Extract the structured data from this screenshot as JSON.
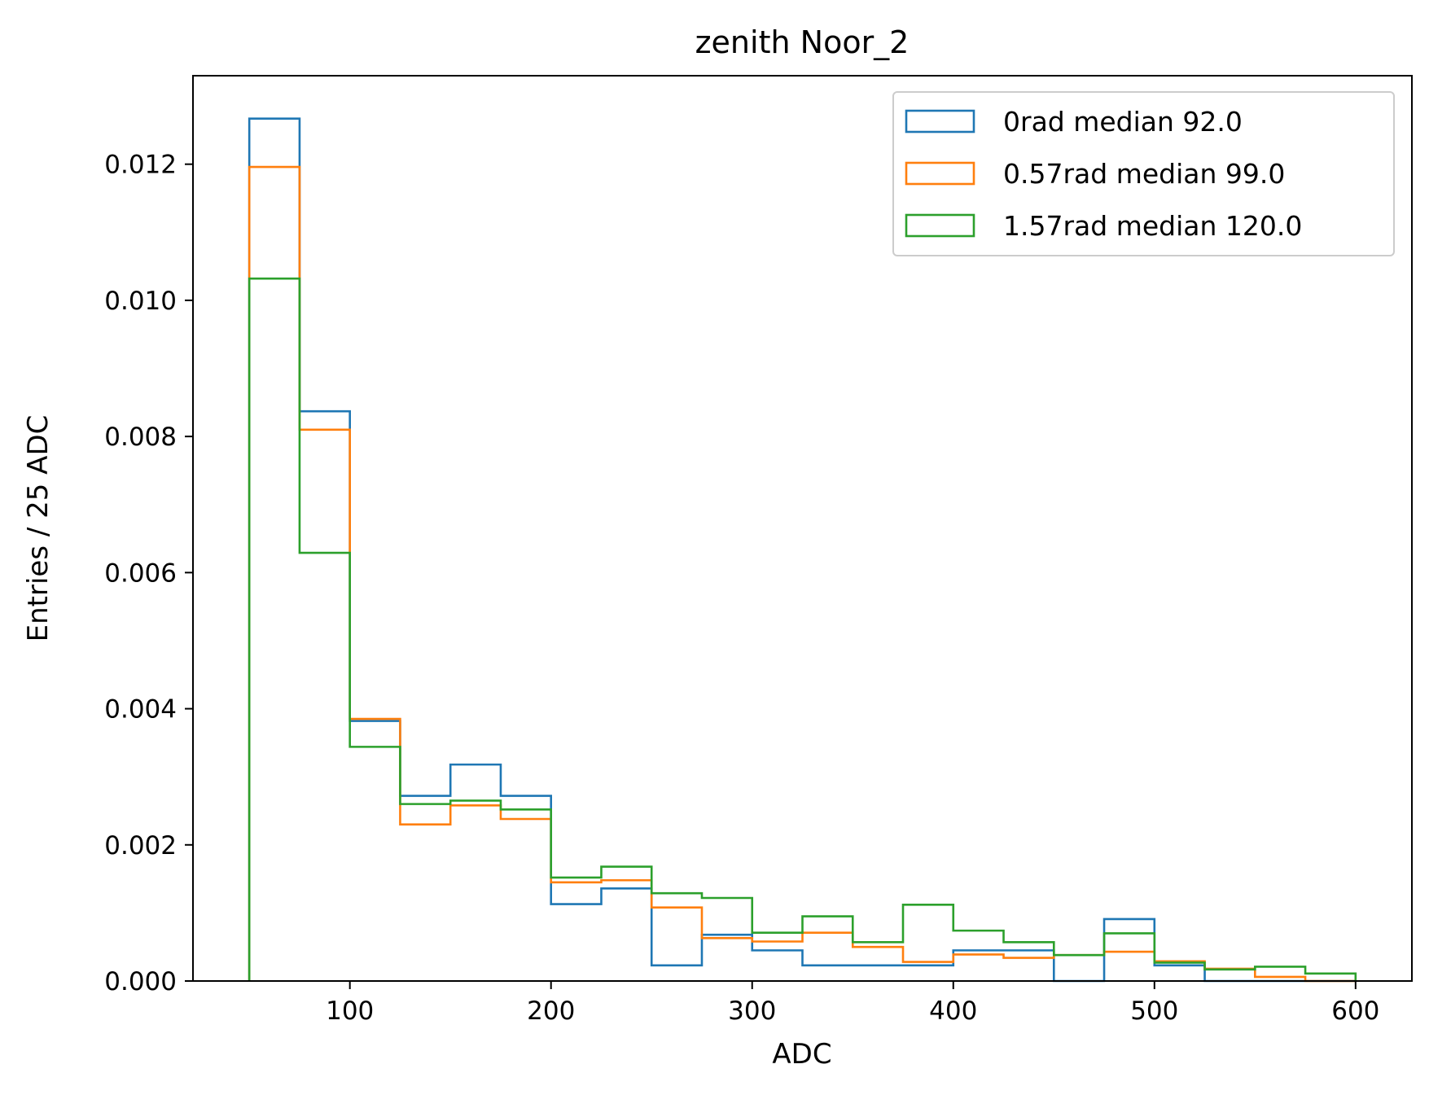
{
  "chart_data": {
    "type": "histogram (step)",
    "title": "zenith Noor_2",
    "xlabel": "ADC",
    "ylabel": "Entries / 25 ADC",
    "xlim": [
      22,
      628
    ],
    "ylim": [
      0,
      0.0133
    ],
    "xticks": [
      100,
      200,
      300,
      400,
      500,
      600
    ],
    "xtick_labels": [
      "100",
      "200",
      "300",
      "400",
      "500",
      "600"
    ],
    "yticks": [
      0.0,
      0.002,
      0.004,
      0.006,
      0.008,
      0.01,
      0.012
    ],
    "ytick_labels": [
      "0.000",
      "0.002",
      "0.004",
      "0.006",
      "0.008",
      "0.010",
      "0.012"
    ],
    "grid": false,
    "legend_position": "upper right",
    "bin_edges": [
      50,
      75,
      100,
      125,
      150,
      175,
      200,
      225,
      250,
      275,
      300,
      325,
      350,
      375,
      400,
      425,
      450,
      475,
      500,
      525,
      550,
      575,
      600
    ],
    "series": [
      {
        "name": "0rad median 92.0",
        "color": "#1f77b4",
        "values": [
          0.01267,
          0.00837,
          0.00382,
          0.00272,
          0.00318,
          0.00272,
          0.00113,
          0.00136,
          0.00023,
          0.00068,
          0.00045,
          0.00023,
          0.00023,
          0.00023,
          0.00045,
          0.00045,
          0.0,
          0.00091,
          0.00023,
          0.0,
          0.0,
          0.0
        ]
      },
      {
        "name": "0.57rad median 99.0",
        "color": "#ff7f0e",
        "values": [
          0.01196,
          0.0081,
          0.00385,
          0.0023,
          0.00258,
          0.00238,
          0.00145,
          0.00148,
          0.00108,
          0.00063,
          0.00058,
          0.00071,
          0.0005,
          0.00028,
          0.00039,
          0.00034,
          0.00038,
          0.00043,
          0.00029,
          0.00018,
          6e-05,
          0.0
        ]
      },
      {
        "name": "1.57rad median 120.0",
        "color": "#2ca02c",
        "values": [
          0.01032,
          0.00629,
          0.00344,
          0.0026,
          0.00265,
          0.00252,
          0.00152,
          0.00168,
          0.00129,
          0.00122,
          0.00071,
          0.00095,
          0.00057,
          0.00112,
          0.00074,
          0.00057,
          0.00038,
          0.0007,
          0.00027,
          0.00017,
          0.00021,
          0.00011
        ]
      }
    ]
  }
}
